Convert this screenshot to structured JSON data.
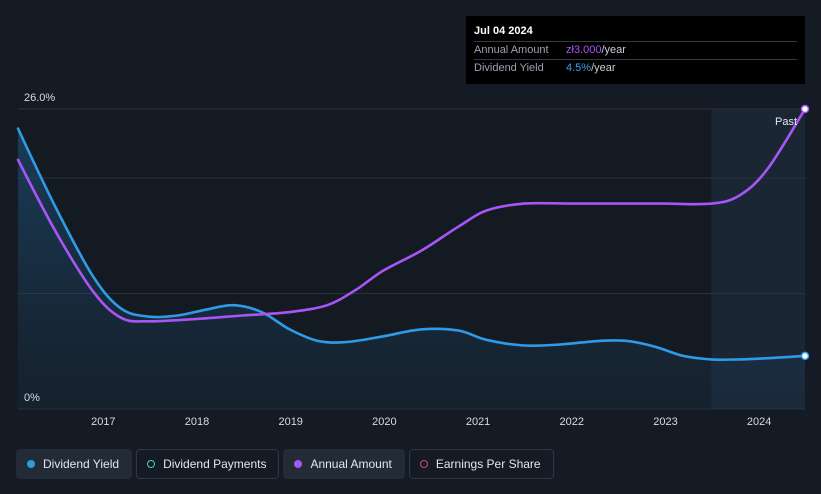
{
  "tooltip": {
    "date": "Jul 04 2024",
    "rows": [
      {
        "label": "Annual Amount",
        "value": "zł3.000",
        "unit": "/year",
        "color": "#a855f7"
      },
      {
        "label": "Dividend Yield",
        "value": "4.5%",
        "unit": "/year",
        "color": "#3aa0e8"
      }
    ]
  },
  "past_label": "Past",
  "legend": [
    {
      "label": "Dividend Yield",
      "color": "#2e9be6",
      "filled": true,
      "active": true
    },
    {
      "label": "Dividend Payments",
      "color": "#3dd6c2",
      "filled": false,
      "active": false
    },
    {
      "label": "Annual Amount",
      "color": "#a855f7",
      "filled": true,
      "active": true
    },
    {
      "label": "Earnings Per Share",
      "color": "#d6407a",
      "filled": false,
      "active": false
    }
  ],
  "chart_data": {
    "type": "line",
    "ylim": [
      0,
      26
    ],
    "y_tick_labels": [
      "26.0%",
      "0%"
    ],
    "xlim": [
      2016.1,
      2024.5
    ],
    "x_ticks": [
      2017,
      2018,
      2019,
      2020,
      2021,
      2022,
      2023,
      2024
    ],
    "x_tick_labels": [
      "2017",
      "2018",
      "2019",
      "2020",
      "2021",
      "2022",
      "2023",
      "2024"
    ],
    "past_start": 2023.5,
    "series": [
      {
        "name": "Dividend Yield",
        "color": "#2e9be6",
        "area": true,
        "points": [
          [
            2016.1,
            24.3
          ],
          [
            2016.5,
            17.5
          ],
          [
            2016.9,
            11.5
          ],
          [
            2017.2,
            8.7
          ],
          [
            2017.5,
            8.0
          ],
          [
            2017.8,
            8.1
          ],
          [
            2018.1,
            8.6
          ],
          [
            2018.4,
            9.0
          ],
          [
            2018.7,
            8.4
          ],
          [
            2019.0,
            6.9
          ],
          [
            2019.3,
            5.9
          ],
          [
            2019.6,
            5.8
          ],
          [
            2020.0,
            6.3
          ],
          [
            2020.4,
            6.9
          ],
          [
            2020.8,
            6.8
          ],
          [
            2021.1,
            6.0
          ],
          [
            2021.5,
            5.5
          ],
          [
            2021.9,
            5.6
          ],
          [
            2022.3,
            5.9
          ],
          [
            2022.6,
            5.9
          ],
          [
            2022.9,
            5.4
          ],
          [
            2023.2,
            4.6
          ],
          [
            2023.5,
            4.3
          ],
          [
            2023.8,
            4.3
          ],
          [
            2024.1,
            4.4
          ],
          [
            2024.5,
            4.6
          ]
        ]
      },
      {
        "name": "Annual Amount",
        "color": "#a855f7",
        "area": false,
        "points": [
          [
            2016.1,
            21.6
          ],
          [
            2016.5,
            15.4
          ],
          [
            2016.9,
            10.2
          ],
          [
            2017.2,
            7.9
          ],
          [
            2017.5,
            7.6
          ],
          [
            2018.0,
            7.8
          ],
          [
            2018.5,
            8.1
          ],
          [
            2019.0,
            8.4
          ],
          [
            2019.4,
            9.0
          ],
          [
            2019.7,
            10.3
          ],
          [
            2020.0,
            12.0
          ],
          [
            2020.4,
            13.7
          ],
          [
            2020.8,
            15.8
          ],
          [
            2021.1,
            17.2
          ],
          [
            2021.5,
            17.8
          ],
          [
            2022.0,
            17.8
          ],
          [
            2022.5,
            17.8
          ],
          [
            2023.0,
            17.8
          ],
          [
            2023.5,
            17.8
          ],
          [
            2023.8,
            18.5
          ],
          [
            2024.1,
            20.8
          ],
          [
            2024.5,
            26.0
          ]
        ]
      }
    ]
  }
}
